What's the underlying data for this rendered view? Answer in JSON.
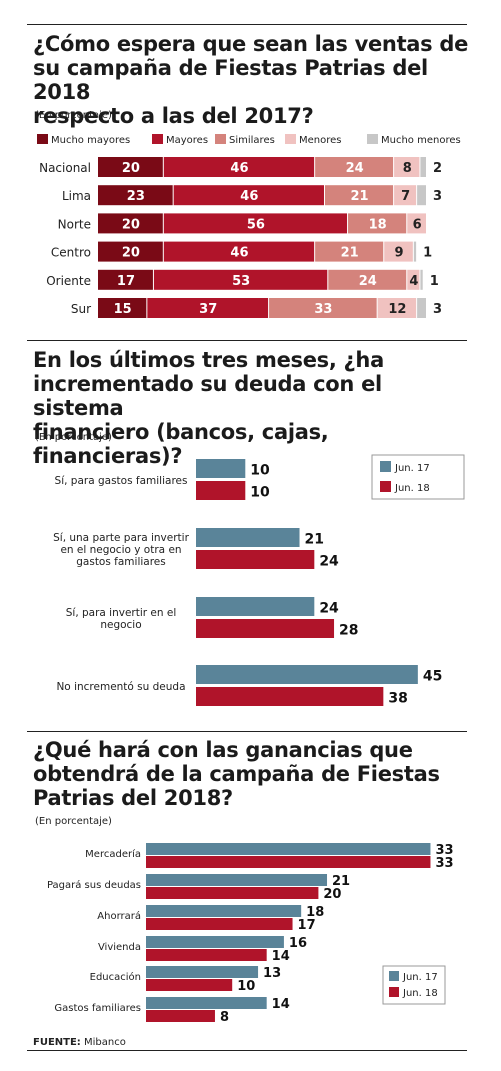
{
  "source": {
    "label": "FUENTE:",
    "text": "Mibanco"
  },
  "colors": {
    "mucho_mayores": "#7a0a16",
    "mayores": "#b0142a",
    "similares": "#d4837c",
    "menores": "#f0c2c0",
    "mucho_menores": "#c7c7c7",
    "jun17": "#5a8499",
    "jun18": "#b0142a"
  },
  "chart_data": [
    {
      "type": "bar",
      "stacked": true,
      "orientation": "horizontal",
      "title": "¿Cómo espera que sean las ventas de su campaña de Fiestas Patrias del 2018 respecto a las del 2017?",
      "title_lines": [
        "¿Cómo espera que sean las ventas de",
        "su campaña de Fiestas Patrias del 2018",
        "respecto a las del 2017?"
      ],
      "subtitle": "(En porcentaje)",
      "legend_position": "top",
      "categories": [
        "Nacional",
        "Lima",
        "Norte",
        "Centro",
        "Oriente",
        "Sur"
      ],
      "series": [
        {
          "name": "Mucho mayores",
          "values": [
            20,
            23,
            20,
            20,
            17,
            15
          ]
        },
        {
          "name": "Mayores",
          "values": [
            46,
            46,
            56,
            46,
            53,
            37
          ]
        },
        {
          "name": "Similares",
          "values": [
            24,
            21,
            18,
            21,
            24,
            33
          ]
        },
        {
          "name": "Menores",
          "values": [
            8,
            7,
            6,
            9,
            4,
            12
          ]
        },
        {
          "name": "Mucho menores",
          "values": [
            2,
            3,
            0,
            1,
            1,
            3
          ]
        }
      ]
    },
    {
      "type": "bar",
      "orientation": "horizontal",
      "title": "En los últimos tres meses, ¿ha incrementado su deuda con el sistema financiero (bancos, cajas, financieras)?",
      "title_lines": [
        "En los últimos tres meses, ¿ha",
        "incrementado su deuda con el sistema",
        "financiero (bancos, cajas, financieras)?"
      ],
      "subtitle": "(En porcentaje)",
      "legend_position": "top-right",
      "categories": [
        "Sí, para gastos familiares",
        "Sí, una parte para invertir en el negocio  y otra en gastos familiares",
        "Sí, para invertir en el negocio",
        "No incrementó su deuda"
      ],
      "category_lines": [
        [
          "Sí, para gastos familiares"
        ],
        [
          "Sí, una parte para invertir",
          "en el negocio  y otra en",
          "gastos familiares"
        ],
        [
          "Sí, para invertir en el",
          "negocio"
        ],
        [
          "No incrementó su deuda"
        ]
      ],
      "series": [
        {
          "name": "Jun. 17",
          "values": [
            10,
            21,
            24,
            45
          ]
        },
        {
          "name": "Jun. 18",
          "values": [
            10,
            24,
            28,
            38
          ]
        }
      ]
    },
    {
      "type": "bar",
      "orientation": "horizontal",
      "title": "¿Qué hará con las ganancias que obtendrá de la campaña de Fiestas Patrias del 2018?",
      "title_lines": [
        "¿Qué hará con las ganancias que",
        "obtendrá de la campaña de Fiestas",
        "Patrias del 2018?"
      ],
      "subtitle": "(En porcentaje)",
      "legend_position": "bottom-right",
      "categories": [
        "Mercadería",
        "Pagará sus deudas",
        "Ahorrará",
        "Vivienda",
        "Educación",
        "Gastos familiares"
      ],
      "series": [
        {
          "name": "Jun. 17",
          "values": [
            33,
            21,
            18,
            16,
            13,
            14
          ]
        },
        {
          "name": "Jun. 18",
          "values": [
            33,
            20,
            17,
            14,
            10,
            8
          ]
        }
      ]
    }
  ]
}
